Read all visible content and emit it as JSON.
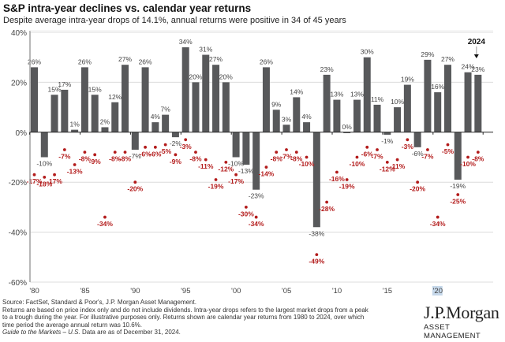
{
  "chart_data": {
    "type": "bar",
    "title": "S&P intra-year declines vs. calendar year returns",
    "subtitle": "Despite average intra-year drops of 14.1%, annual returns were positive in 34 of 45 years",
    "xlabel": "",
    "ylabel": "",
    "ylim": [
      -60,
      40
    ],
    "yticks": [
      40,
      20,
      0,
      -20,
      -40,
      -60
    ],
    "ytick_labels": [
      "40%",
      "20%",
      "0%",
      "-20%",
      "-40%",
      "-60%"
    ],
    "xtick_labels": [
      {
        "year": 1980,
        "label": "'80"
      },
      {
        "year": 1985,
        "label": "'85"
      },
      {
        "year": 1990,
        "label": "'90"
      },
      {
        "year": 1995,
        "label": "'95"
      },
      {
        "year": 2000,
        "label": "'00"
      },
      {
        "year": 2005,
        "label": "'05"
      },
      {
        "year": 2010,
        "label": "'10"
      },
      {
        "year": 2015,
        "label": "'15"
      },
      {
        "year": 2020,
        "label": "'20"
      }
    ],
    "grid": true,
    "categories": [
      1980,
      1981,
      1982,
      1983,
      1984,
      1985,
      1986,
      1987,
      1988,
      1989,
      1990,
      1991,
      1992,
      1993,
      1994,
      1995,
      1996,
      1997,
      1998,
      1999,
      2000,
      2001,
      2002,
      2003,
      2004,
      2005,
      2006,
      2007,
      2008,
      2009,
      2010,
      2011,
      2012,
      2013,
      2014,
      2015,
      2016,
      2017,
      2018,
      2019,
      2020,
      2021,
      2022,
      2023,
      2024
    ],
    "series": [
      {
        "name": "Calendar year return",
        "type": "bar",
        "color": "#58595b",
        "values": [
          26,
          -10,
          15,
          17,
          1,
          26,
          15,
          2,
          12,
          27,
          -7,
          26,
          4,
          7,
          -2,
          34,
          20,
          31,
          27,
          20,
          -10,
          -13,
          -23,
          26,
          9,
          3,
          14,
          4,
          -38,
          23,
          13,
          0,
          13,
          30,
          11,
          -1,
          10,
          19,
          -6,
          29,
          16,
          27,
          -19,
          24,
          23
        ]
      },
      {
        "name": "Intra-year decline",
        "type": "scatter",
        "color": "#b31b1b",
        "values": [
          -17,
          -18,
          -17,
          -7,
          -13,
          -8,
          -9,
          -34,
          -8,
          -8,
          -20,
          -6,
          -6,
          -5,
          -9,
          -3,
          -8,
          -11,
          -19,
          -12,
          -17,
          -30,
          -34,
          -14,
          -8,
          -7,
          -8,
          -10,
          -49,
          -28,
          -16,
          -19,
          -10,
          -6,
          -7,
          -12,
          -11,
          -3,
          -20,
          -7,
          -34,
          -5,
          -25,
          -10,
          -8
        ]
      }
    ],
    "annotations": [
      {
        "text": "2024",
        "target_year": 2024,
        "arrow": "down"
      }
    ]
  },
  "footer": {
    "source": "Source: FactSet, Standard & Poor's, J.P. Morgan Asset Management.",
    "note": "Returns are based on price index only and do not include dividends. Intra-year drops refers to the largest market drops from a peak to a trough during the year. For illustrative purposes only. Returns shown are calendar year returns from 1980 to 2024, over which time period the average annual return was 10.6%.",
    "guide_italic": "Guide to the Markets – U.S.",
    "guide_rest": " Data are as of December 31, 2024."
  },
  "logo": {
    "brand": "J.P.Morgan",
    "sub": "ASSET MANAGEMENT"
  }
}
